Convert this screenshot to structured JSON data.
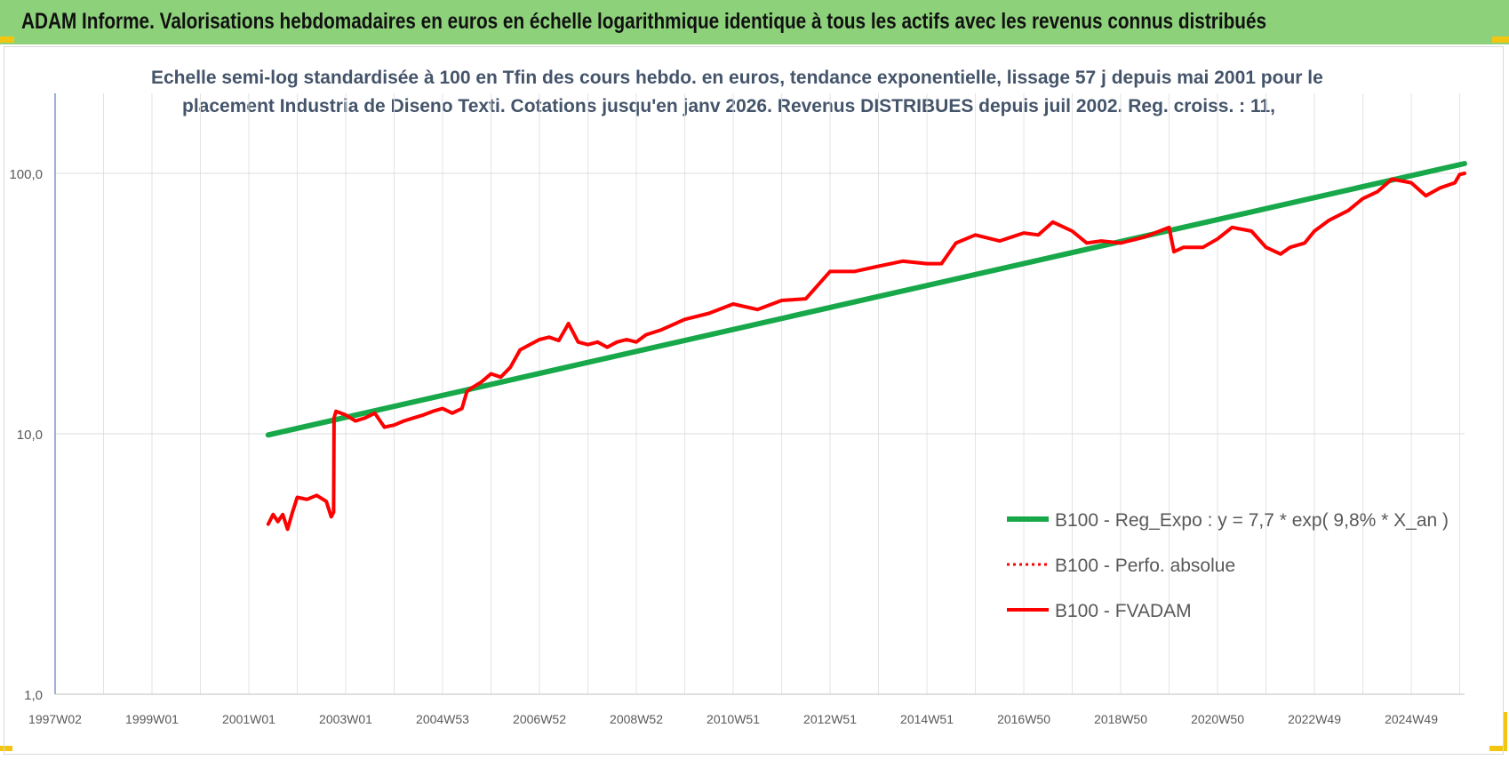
{
  "banner": {
    "title": "ADAM Informe. Valorisations hebdomadaires en euros en échelle logarithmique identique à tous les actifs avec les revenus connus distribués",
    "color": "#8dd17a",
    "corner_color": "#f2c511"
  },
  "chart_data": {
    "type": "line",
    "title_line1": "Echelle semi-log standardisée à 100 en Tfin des cours hebdo. en euros, tendance exponentielle, lissage 57 j depuis mai 2001 pour le",
    "title_line2": "placement Industria de Diseno Texti. Cotations jusqu'en janv 2026. Revenus DISTRIBUES depuis juil 2002. Reg. croiss. : 11,",
    "y_scale": "log",
    "ylim": [
      1,
      100
    ],
    "y_ticks": [
      "100,0",
      "10,0",
      "1,0"
    ],
    "y_tick_values": [
      100,
      10,
      1
    ],
    "xlim": [
      1997.0,
      2026.1
    ],
    "x_ticks": [
      "1997W02",
      "1999W01",
      "2001W01",
      "2003W01",
      "2004W53",
      "2006W52",
      "2008W52",
      "2010W51",
      "2012W51",
      "2014W51",
      "2016W50",
      "2018W50",
      "2020W50",
      "2022W49",
      "2024W49"
    ],
    "x_tick_years": [
      1997,
      1999,
      2001,
      2003,
      2005,
      2007,
      2009,
      2011,
      2013,
      2015,
      2017,
      2019,
      2021,
      2023,
      2025
    ],
    "grid": "vertical-yearly-and-horizontal-decades",
    "legend_position": "right-middle",
    "series": [
      {
        "name": "B100 - Reg_Expo : y = 7,7 * exp( 9,8% *  X_an )",
        "style": "solid-thick",
        "color": "#17a84a",
        "x": [
          2001.4,
          2026.1
        ],
        "y": [
          9.9,
          109
        ]
      },
      {
        "name": "B100 - Perfo. absolue",
        "style": "dotted",
        "color": "#ff0000",
        "x": [],
        "y": []
      },
      {
        "name": "B100 - FVADAM",
        "style": "solid",
        "color": "#ff0000",
        "x": [
          2001.4,
          2001.5,
          2001.6,
          2001.7,
          2001.8,
          2001.9,
          2002.0,
          2002.2,
          2002.4,
          2002.6,
          2002.7,
          2002.75,
          2002.76,
          2002.8,
          2002.9,
          2003.0,
          2003.2,
          2003.4,
          2003.6,
          2003.8,
          2004.0,
          2004.2,
          2004.4,
          2004.6,
          2004.8,
          2005.0,
          2005.2,
          2005.4,
          2005.5,
          2005.6,
          2005.8,
          2006.0,
          2006.2,
          2006.4,
          2006.6,
          2006.8,
          2007.0,
          2007.2,
          2007.4,
          2007.6,
          2007.8,
          2008.0,
          2008.2,
          2008.4,
          2008.6,
          2008.8,
          2009.0,
          2009.2,
          2009.5,
          2010.0,
          2010.5,
          2011.0,
          2011.5,
          2012.0,
          2012.5,
          2013.0,
          2013.5,
          2014.0,
          2014.5,
          2015.0,
          2015.3,
          2015.6,
          2016.0,
          2016.5,
          2017.0,
          2017.3,
          2017.6,
          2018.0,
          2018.3,
          2018.6,
          2019.0,
          2019.5,
          2020.0,
          2020.1,
          2020.3,
          2020.7,
          2021.0,
          2021.3,
          2021.7,
          2022.0,
          2022.3,
          2022.5,
          2022.8,
          2023.0,
          2023.3,
          2023.7,
          2024.0,
          2024.3,
          2024.6,
          2025.0,
          2025.3,
          2025.6,
          2025.9,
          2026.0,
          2026.1
        ],
        "y": [
          4.5,
          4.9,
          4.6,
          4.9,
          4.3,
          5.0,
          5.7,
          5.6,
          5.8,
          5.5,
          4.8,
          5.0,
          11.5,
          12.2,
          12.0,
          11.8,
          11.2,
          11.5,
          12.0,
          10.6,
          10.8,
          11.2,
          11.5,
          11.8,
          12.2,
          12.5,
          12.0,
          12.5,
          14.5,
          15.0,
          15.8,
          17.0,
          16.5,
          18.0,
          21.0,
          22.0,
          23.0,
          23.5,
          22.8,
          26.5,
          22.5,
          22.0,
          22.5,
          21.5,
          22.5,
          23.0,
          22.5,
          24.0,
          25.0,
          27.5,
          29.0,
          31.5,
          30.0,
          32.5,
          33.0,
          42.0,
          42.0,
          44.0,
          46.0,
          45.0,
          45.0,
          54.0,
          58.0,
          55.0,
          59.0,
          58.0,
          65.0,
          60.0,
          54.0,
          55.0,
          54.0,
          57.0,
          62.0,
          50.0,
          52.0,
          52.0,
          56.0,
          62.0,
          60.0,
          52.0,
          49.0,
          52.0,
          54.0,
          60.0,
          66.0,
          72.0,
          80.0,
          85.0,
          95.0,
          92.0,
          82.0,
          88.0,
          92.0,
          99.0,
          100.0
        ]
      }
    ]
  }
}
